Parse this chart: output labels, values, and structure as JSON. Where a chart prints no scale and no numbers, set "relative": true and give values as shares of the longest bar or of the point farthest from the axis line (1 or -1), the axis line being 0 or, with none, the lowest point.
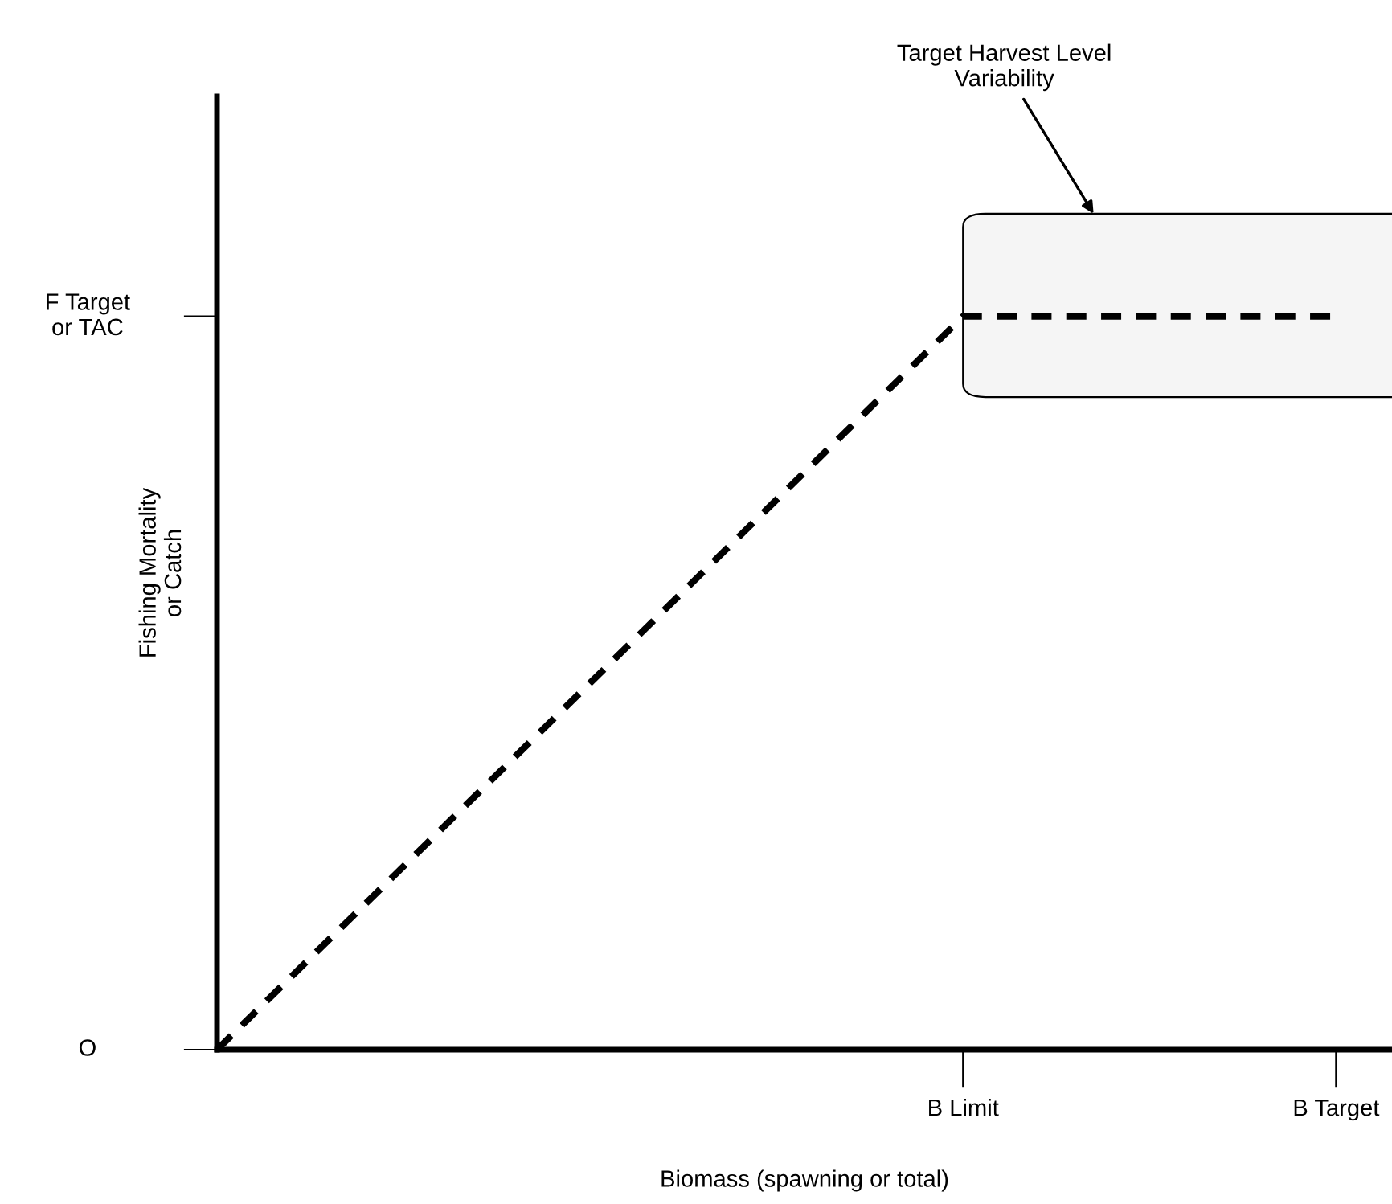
{
  "chart_data": {
    "type": "line",
    "xlabel": "Biomass (spawning or total)",
    "ylabel": "Fishing Mortality\nor Catch",
    "relative": true,
    "categories": [
      null,
      null,
      "B Limit",
      "B Target"
    ],
    "series": [
      {
        "color": "#000000",
        "values": [
          0,
          0.5,
          1,
          1
        ]
      }
    ],
    "line_style": "dashed",
    "bands": [
      {
        "axis": "y",
        "from": 0.89,
        "to": 1.14,
        "color": "#000000"
      }
    ],
    "annotations": [
      "Target Harvest Level\nVariability",
      "O",
      "F Target\nor TAC"
    ]
  }
}
